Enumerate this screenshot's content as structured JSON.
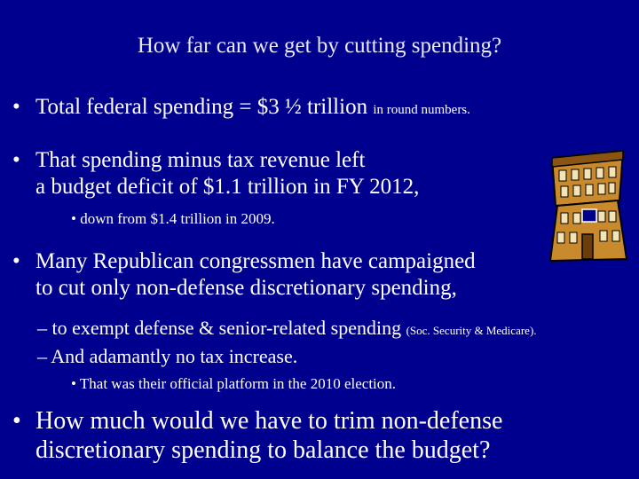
{
  "slide": {
    "title": "How far can we get by cutting spending?",
    "bullet_char": "•",
    "dash_char": "–",
    "bullets": {
      "b1_main": "Total federal spending = $3 ½ trillion",
      "b1_note": "in round numbers.",
      "b2_line1": "That spending minus tax revenue left",
      "b2_line2": "a budget deficit of $1.1 trillion in FY 2012,",
      "b2_sub": "down from $1.4 trillion in 2009.",
      "b3_line1": "Many Republican congressmen have campaigned",
      "b3_line2": "to cut only non-defense discretionary spending,",
      "b3_dash1_main": "to exempt defense & senior-related spending",
      "b3_dash1_note": "(Soc. Security & Medicare).",
      "b3_dash2": "And adamantly no tax increase.",
      "b3_sub": "That was their official platform in the 2010 election.",
      "b4_line1": "How much would we have to trim non-defense",
      "b4_line2": "discretionary spending to balance the budget?"
    },
    "icon": "capitol-building-icon",
    "colors": {
      "background": "#00008e",
      "text": "#ffffff"
    }
  }
}
